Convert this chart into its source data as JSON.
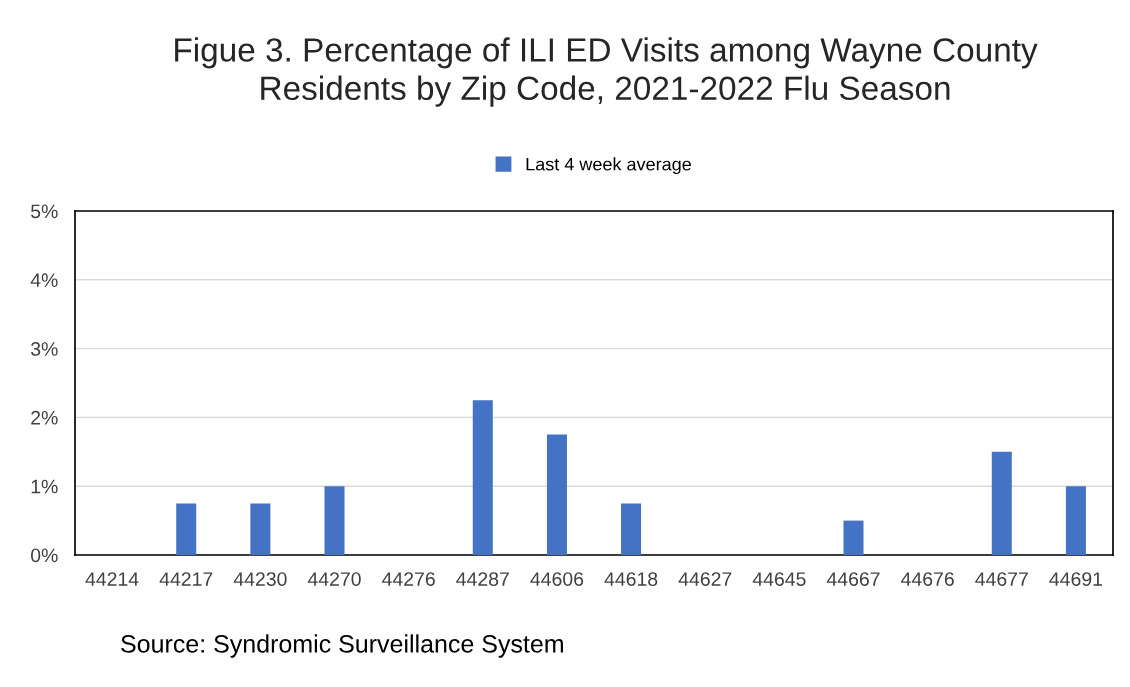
{
  "chart_data": {
    "type": "bar",
    "title": "Figue 3. Percentage of ILI ED Visits among Wayne County\nResidents by Zip Code, 2021-2022 Flu Season",
    "categories": [
      "44214",
      "44217",
      "44230",
      "44270",
      "44276",
      "44287",
      "44606",
      "44618",
      "44627",
      "44645",
      "44667",
      "44676",
      "44677",
      "44691"
    ],
    "series": [
      {
        "name": "Last 4 week average",
        "color": "#4472c4",
        "values": [
          0,
          0.75,
          0.75,
          1.0,
          0,
          2.25,
          1.75,
          0.75,
          0,
          0,
          0.5,
          0,
          1.5,
          1.0
        ]
      }
    ],
    "ylim": [
      0,
      5
    ],
    "yticks": [
      {
        "value": 0,
        "label": "0%"
      },
      {
        "value": 1,
        "label": "1%"
      },
      {
        "value": 2,
        "label": "2%"
      },
      {
        "value": 3,
        "label": "3%"
      },
      {
        "value": 4,
        "label": "4%"
      },
      {
        "value": 5,
        "label": "5%"
      }
    ],
    "grid": "y",
    "legend": "top",
    "annotations": [
      "Source: Syndromic Surveillance System"
    ]
  }
}
